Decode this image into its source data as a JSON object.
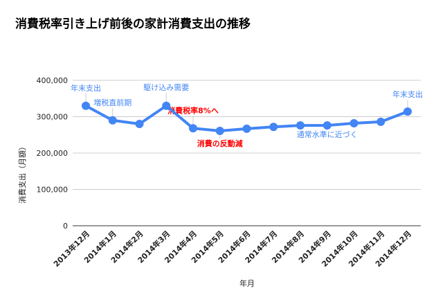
{
  "chart_data": {
    "type": "line",
    "title": "消費税率引き上げ前後の家計消費支出の推移",
    "xlabel": "年月",
    "ylabel": "消費支出（月額）",
    "ylim": [
      0,
      400000
    ],
    "yticks": [
      0,
      100000,
      200000,
      300000,
      400000
    ],
    "ytick_labels": [
      "0",
      "100,000",
      "200,000",
      "300,000",
      "400,000"
    ],
    "grid": true,
    "categories": [
      "2013年12月",
      "2014年1月",
      "2014年2月",
      "2014年3月",
      "2014年4月",
      "2014年5月",
      "2014年6月",
      "2014年7月",
      "2014年8月",
      "2014年9月",
      "2014年10月",
      "2014年11月",
      "2014年12月"
    ],
    "values": [
      330000,
      290000,
      280000,
      330000,
      268000,
      261000,
      267000,
      272000,
      276000,
      276000,
      282000,
      286000,
      314000
    ],
    "line_color": "#4285f4",
    "annotations": [
      {
        "index": 0,
        "text": "年末支出",
        "color": "#4285f4",
        "position": "above"
      },
      {
        "index": 1,
        "text": "増税直前期",
        "color": "#4285f4",
        "position": "above"
      },
      {
        "index": 3,
        "text": "駆け込み需要",
        "color": "#4285f4",
        "position": "above"
      },
      {
        "index": 4,
        "text": "消費税率8%へ",
        "color": "#ff0000",
        "position": "above"
      },
      {
        "index": 5,
        "text": "消費の反動減",
        "color": "#ff0000",
        "position": "below"
      },
      {
        "index": 9,
        "text": "通常水準に近づく",
        "color": "#4285f4",
        "position": "below"
      },
      {
        "index": 12,
        "text": "年末支出",
        "color": "#4285f4",
        "position": "above"
      }
    ]
  }
}
